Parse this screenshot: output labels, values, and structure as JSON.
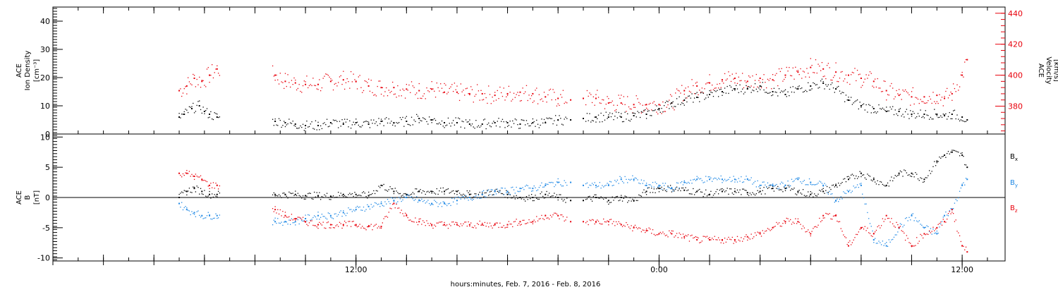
{
  "figure": {
    "xlabel": "hours:minutes, Feb.  7, 2016 - Feb.  8, 2016",
    "x_tick_labels": [
      {
        "hour": 12,
        "label": "12:00"
      },
      {
        "hour": 24,
        "label": "0:00"
      },
      {
        "hour": 36,
        "label": "12:00"
      }
    ]
  },
  "chart_data": [
    {
      "type": "scatter",
      "panel": "top",
      "ylabel_left": [
        "ACE",
        "Ion Density",
        "[cm⁻³]"
      ],
      "ylabel_right": [
        "ACE",
        "Velocity",
        "[km/s]"
      ],
      "x_range_hours": [
        5.0,
        36.2
      ],
      "x_major_ticks_hours": [
        12,
        24,
        36
      ],
      "ylim_left": [
        0,
        45
      ],
      "yticks_left": [
        0,
        10,
        20,
        30,
        40
      ],
      "ylim_right": [
        362,
        444
      ],
      "yticks_right": [
        380,
        400,
        420,
        440
      ],
      "colors": {
        "density": "#000000",
        "velocity": "#e8000b"
      },
      "grid": false,
      "series": [
        {
          "color": "#000000",
          "axis": "left",
          "x": [
            5.0,
            5.2,
            5.5,
            5.8,
            6.0,
            6.2,
            6.5,
            8.8,
            9.2,
            9.6,
            10.0,
            10.5,
            11.0,
            11.5,
            12.0,
            12.5,
            13.0,
            13.5,
            14.0,
            14.5,
            15.0,
            15.5,
            16.0,
            16.5,
            17.0,
            17.5,
            18.0,
            18.5,
            19.0,
            19.5,
            20.0,
            20.5,
            21.0,
            21.5,
            22.0,
            22.5,
            23.0,
            23.5,
            24.0,
            24.5,
            25.0,
            25.5,
            26.0,
            26.5,
            27.0,
            27.5,
            28.0,
            28.5,
            29.0,
            29.5,
            30.0,
            30.5,
            31.0,
            31.5,
            32.0,
            32.5,
            33.0,
            33.5,
            34.0,
            34.5,
            35.0,
            35.3,
            35.6,
            36.0,
            36.2
          ],
          "y": [
            6,
            7,
            9,
            10,
            8,
            7,
            6,
            4.5,
            4,
            3.5,
            3,
            3,
            4,
            3.5,
            4,
            3.5,
            4.5,
            4,
            4.5,
            5.5,
            5,
            4,
            4,
            3.5,
            3.5,
            4,
            4,
            3.5,
            4,
            4,
            5,
            5,
            5.5,
            6,
            6,
            6,
            6.5,
            7,
            9,
            11,
            12,
            13,
            14,
            15,
            16,
            16,
            17,
            15,
            14,
            16,
            17,
            18,
            16,
            12,
            10,
            9,
            8,
            8,
            7,
            7,
            7,
            6.5,
            7,
            6,
            5
          ]
        },
        {
          "color": "#e8000b",
          "axis": "right",
          "x": [
            5.0,
            5.3,
            5.6,
            5.9,
            6.2,
            6.5,
            8.8,
            9.2,
            9.6,
            10.0,
            10.5,
            11.0,
            11.5,
            12.0,
            12.5,
            13.0,
            13.5,
            14.0,
            14.5,
            15.0,
            15.5,
            16.0,
            16.5,
            17.0,
            17.5,
            18.0,
            18.5,
            19.0,
            19.5,
            20.0,
            20.5,
            21.0,
            21.5,
            22.0,
            22.5,
            23.0,
            23.5,
            24.0,
            24.5,
            25.0,
            25.5,
            26.0,
            26.5,
            27.0,
            27.5,
            28.0,
            28.5,
            29.0,
            29.5,
            30.0,
            30.5,
            31.0,
            31.5,
            32.0,
            32.5,
            33.0,
            33.5,
            34.0,
            34.5,
            35.0,
            35.3,
            35.6,
            36.0,
            36.2
          ],
          "y": [
            390,
            393,
            398,
            396,
            400,
            404,
            400,
            396,
            395,
            394,
            394,
            396,
            397,
            396,
            393,
            392,
            392,
            391,
            390,
            391,
            389,
            389,
            388,
            388,
            387,
            388,
            389,
            388,
            386,
            385,
            384,
            385,
            385,
            382,
            382,
            381,
            381,
            381,
            382,
            390,
            393,
            395,
            397,
            398,
            396,
            398,
            397,
            400,
            402,
            405,
            404,
            402,
            400,
            398,
            396,
            390,
            387,
            386,
            386,
            387,
            385,
            388,
            400,
            410
          ]
        }
      ]
    },
    {
      "type": "scatter",
      "panel": "bottom",
      "ylabel_left": [
        "ACE",
        "B",
        "[nT]"
      ],
      "x_range_hours": [
        5.0,
        36.2
      ],
      "ylim": [
        -10.5,
        10.5
      ],
      "yticks": [
        -10,
        -5,
        0,
        5,
        10
      ],
      "zero_line": true,
      "grid": false,
      "legend": {
        "placement": "right"
      },
      "series": [
        {
          "label_main": "B",
          "label_sub": "x",
          "color": "#000000",
          "x": [
            5.0,
            5.3,
            5.6,
            5.9,
            6.2,
            6.5,
            8.8,
            9.2,
            9.6,
            10.0,
            10.5,
            11.0,
            11.5,
            12.0,
            12.5,
            13.0,
            13.5,
            14.0,
            14.5,
            15.0,
            15.5,
            16.0,
            16.5,
            17.0,
            17.5,
            18.0,
            18.5,
            19.0,
            19.5,
            20.0,
            20.5,
            21.0,
            21.5,
            22.0,
            22.5,
            23.0,
            23.5,
            24.0,
            24.5,
            25.0,
            25.5,
            26.0,
            26.5,
            27.0,
            27.5,
            28.0,
            28.5,
            29.0,
            29.5,
            30.0,
            30.5,
            31.0,
            31.5,
            32.0,
            32.5,
            33.0,
            33.5,
            34.0,
            34.5,
            35.0,
            35.3,
            35.6,
            36.0,
            36.2
          ],
          "y": [
            0,
            1,
            1.5,
            1,
            0.5,
            0.5,
            0.5,
            0.5,
            0.5,
            0.3,
            0.3,
            0.2,
            0.5,
            0.5,
            0.3,
            2,
            1,
            0.5,
            1,
            1,
            1,
            1,
            0.5,
            0.5,
            1,
            0.5,
            0,
            0,
            0.5,
            0,
            -0.5,
            -0.5,
            0,
            -0.5,
            0,
            -0.5,
            1,
            1.5,
            1.5,
            1.2,
            1,
            0.5,
            1,
            1,
            0.8,
            1,
            1.5,
            1.5,
            1,
            0.5,
            1,
            2,
            3,
            4,
            3,
            2,
            4,
            4,
            3,
            6,
            7,
            7.5,
            7,
            5
          ]
        },
        {
          "label_main": "B",
          "label_sub": "y",
          "color": "#1e88e5",
          "x": [
            5.0,
            5.3,
            5.6,
            5.9,
            6.2,
            6.5,
            8.8,
            9.2,
            9.6,
            10.0,
            10.5,
            11.0,
            11.5,
            12.0,
            12.5,
            13.0,
            13.5,
            14.0,
            14.5,
            15.0,
            15.5,
            16.0,
            16.5,
            17.0,
            17.5,
            18.0,
            18.5,
            19.0,
            19.5,
            20.0,
            20.5,
            21.0,
            21.5,
            22.0,
            22.5,
            23.0,
            23.5,
            24.0,
            24.5,
            25.0,
            25.5,
            26.0,
            26.5,
            27.0,
            27.5,
            28.0,
            28.5,
            29.0,
            29.5,
            30.0,
            30.5,
            31.0,
            31.5,
            32.0,
            32.5,
            33.0,
            33.5,
            34.0,
            34.5,
            35.0,
            35.3,
            35.6,
            36.0,
            36.2
          ],
          "y": [
            -1,
            -2,
            -2.5,
            -3,
            -3,
            -3,
            -4,
            -4,
            -4,
            -3.5,
            -3,
            -3,
            -2.5,
            -2,
            -1.5,
            -1,
            -0.5,
            0,
            -0.5,
            -1,
            -1,
            -0.5,
            0,
            0.5,
            1,
            1,
            1.5,
            1.5,
            2,
            2.5,
            2.5,
            2,
            2,
            2,
            3,
            3,
            2,
            2,
            1.5,
            2.5,
            3,
            3,
            3,
            3,
            3,
            2,
            2,
            2,
            3,
            2.5,
            2,
            -0.5,
            1,
            2,
            -7,
            -8,
            -5,
            -3,
            -5,
            -6,
            -3,
            -2,
            2,
            3
          ]
        },
        {
          "label_main": "B",
          "label_sub": "z",
          "color": "#e8000b",
          "x": [
            5.0,
            5.3,
            5.6,
            5.9,
            6.2,
            6.5,
            8.8,
            9.2,
            9.6,
            10.0,
            10.5,
            11.0,
            11.5,
            12.0,
            12.5,
            13.0,
            13.5,
            14.0,
            14.5,
            15.0,
            15.5,
            16.0,
            16.5,
            17.0,
            17.5,
            18.0,
            18.5,
            19.0,
            19.5,
            20.0,
            20.5,
            21.0,
            21.5,
            22.0,
            22.5,
            23.0,
            23.5,
            24.0,
            24.5,
            25.0,
            25.5,
            26.0,
            26.5,
            27.0,
            27.5,
            28.0,
            28.5,
            29.0,
            29.5,
            30.0,
            30.5,
            31.0,
            31.5,
            32.0,
            32.5,
            33.0,
            33.5,
            34.0,
            34.5,
            35.0,
            35.3,
            35.6,
            36.0,
            36.2
          ],
          "y": [
            4,
            4,
            3.5,
            3,
            2,
            2,
            -2,
            -3,
            -3.5,
            -4,
            -4.5,
            -4.5,
            -4.5,
            -4.5,
            -4.8,
            -4.8,
            -1,
            -3,
            -4,
            -4.5,
            -4.5,
            -4.5,
            -4.5,
            -4.5,
            -4.5,
            -4.5,
            -4,
            -4,
            -3,
            -3,
            -4,
            -4,
            -4,
            -4,
            -4.5,
            -5,
            -5.5,
            -6,
            -6,
            -6.5,
            -7,
            -7,
            -7,
            -7,
            -6.5,
            -6,
            -5,
            -4,
            -4,
            -6,
            -3,
            -3,
            -8,
            -5,
            -6,
            -3,
            -5,
            -8,
            -6,
            -5,
            -4,
            -2,
            -8,
            -9
          ]
        }
      ]
    }
  ]
}
